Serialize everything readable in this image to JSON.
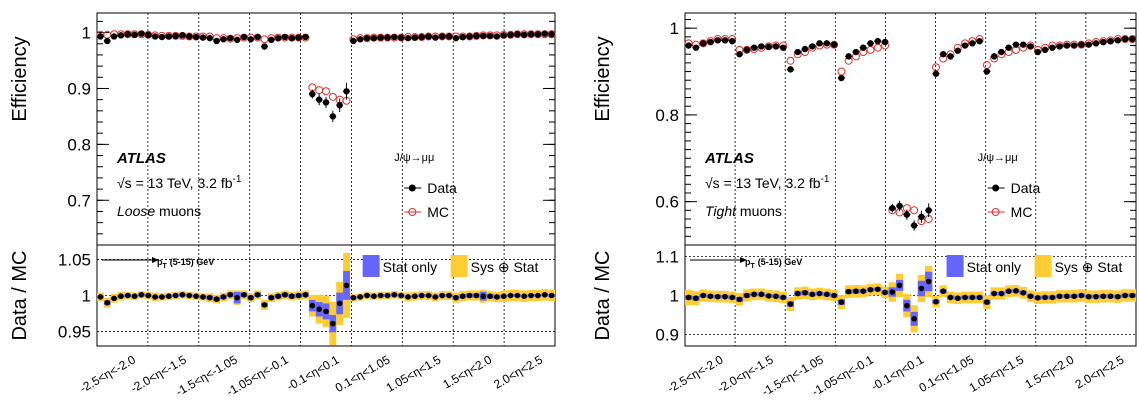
{
  "chart_data": [
    {
      "type": "scatter",
      "panel": "loose",
      "ylabel_top": "Efficiency",
      "ylabel_bottom": "Data / MC",
      "atlas_label": "ATLAS",
      "energy_label": "√s = 13 TeV, 3.2 fb",
      "energy_sup": "-1",
      "selection_label": "Loose",
      "selection_suffix": " muons",
      "process_label": "J/ψ→μμ",
      "pt_label": "p",
      "pt_sub": "T",
      "pt_range": "(5-15) GeV",
      "legend": {
        "data": "Data",
        "mc": "MC",
        "stat": "Stat only",
        "sys": "Sys ⊕ Stat"
      },
      "colors": {
        "data": "#000000",
        "mc": "#e03030",
        "stat": "#6666ff",
        "sys": "#ffcc33"
      },
      "eta_bins": [
        "-2.5<η<-2.0",
        "-2.0<η<-1.5",
        "-1.5<η<-1.05",
        "-1.05<η<-0.1",
        "-0.1<η<0.1",
        "0.1<η<1.05",
        "1.05<η<1.5",
        "1.5<η<2.0",
        "2.0<η<2.5"
      ],
      "top": {
        "ylim": [
          0.62,
          1.035
        ],
        "yticks": [
          "0.7",
          "0.8",
          "0.9",
          "1"
        ],
        "ytick_values": [
          0.7,
          0.8,
          0.9,
          1.0
        ],
        "data": [
          0.993,
          0.985,
          0.993,
          0.995,
          0.997,
          0.996,
          0.998,
          0.996,
          0.993,
          0.992,
          0.993,
          0.994,
          0.995,
          0.993,
          0.992,
          0.991,
          0.99,
          0.985,
          0.988,
          0.99,
          0.987,
          0.992,
          0.988,
          0.992,
          0.975,
          0.987,
          0.99,
          0.992,
          0.99,
          0.991,
          0.992,
          0.89,
          0.88,
          0.875,
          0.85,
          0.87,
          0.895,
          0.985,
          0.988,
          0.99,
          0.99,
          0.991,
          0.991,
          0.992,
          0.991,
          0.99,
          0.991,
          0.992,
          0.993,
          0.991,
          0.993,
          0.993,
          0.99,
          0.992,
          0.993,
          0.994,
          0.994,
          0.994,
          0.993,
          0.995,
          0.996,
          0.997,
          0.996,
          0.997,
          0.997,
          0.998,
          0.997
        ],
        "mc": [
          0.996,
          0.996,
          0.997,
          0.997,
          0.997,
          0.997,
          0.997,
          0.996,
          0.995,
          0.994,
          0.994,
          0.994,
          0.994,
          0.993,
          0.993,
          0.993,
          0.993,
          0.99,
          0.99,
          0.989,
          0.99,
          0.991,
          0.991,
          0.991,
          0.988,
          0.99,
          0.991,
          0.991,
          0.991,
          0.991,
          0.991,
          0.902,
          0.897,
          0.895,
          0.885,
          0.88,
          0.878,
          0.988,
          0.99,
          0.99,
          0.991,
          0.991,
          0.991,
          0.991,
          0.991,
          0.992,
          0.992,
          0.992,
          0.993,
          0.993,
          0.993,
          0.993,
          0.993,
          0.993,
          0.993,
          0.994,
          0.995,
          0.995,
          0.995,
          0.996,
          0.996,
          0.997,
          0.997,
          0.997,
          0.997,
          0.997,
          0.997
        ],
        "err": [
          0.004,
          0.004,
          0.003,
          0.003,
          0.003,
          0.003,
          0.003,
          0.003,
          0.004,
          0.004,
          0.004,
          0.003,
          0.003,
          0.004,
          0.004,
          0.004,
          0.005,
          0.004,
          0.004,
          0.004,
          0.005,
          0.004,
          0.004,
          0.004,
          0.005,
          0.004,
          0.004,
          0.004,
          0.004,
          0.004,
          0.004,
          0.008,
          0.01,
          0.01,
          0.01,
          0.012,
          0.015,
          0.004,
          0.003,
          0.003,
          0.003,
          0.003,
          0.003,
          0.003,
          0.003,
          0.003,
          0.003,
          0.003,
          0.003,
          0.003,
          0.003,
          0.003,
          0.003,
          0.003,
          0.003,
          0.003,
          0.003,
          0.003,
          0.003,
          0.003,
          0.003,
          0.003,
          0.003,
          0.003,
          0.003,
          0.003,
          0.003
        ]
      },
      "bottom": {
        "ylim": [
          0.93,
          1.07
        ],
        "yticks": [
          "0.95",
          "1",
          "1.05"
        ],
        "ytick_values": [
          0.95,
          1.0,
          1.05
        ],
        "ratio": [
          0.998,
          0.99,
          0.996,
          0.999,
          1.0,
          0.999,
          1.001,
          1.0,
          0.998,
          0.998,
          0.999,
          1.0,
          1.001,
          1.0,
          0.999,
          0.998,
          0.997,
          0.995,
          0.998,
          1.001,
          0.997,
          1.001,
          0.997,
          1.001,
          0.987,
          0.997,
          0.999,
          1.001,
          0.999,
          1.0,
          1.001,
          0.986,
          0.981,
          0.978,
          0.961,
          0.989,
          1.014,
          0.997,
          0.998,
          1.0,
          0.999,
          1.0,
          1.0,
          1.001,
          1.0,
          0.998,
          0.999,
          1.0,
          1.0,
          0.998,
          1.0,
          1.0,
          0.997,
          0.999,
          1.0,
          1.0,
          0.999,
          0.999,
          0.998,
          0.999,
          1.0,
          1.0,
          0.999,
          1.0,
          1.0,
          1.001,
          1.0
        ],
        "stat": [
          0.002,
          0.003,
          0.002,
          0.002,
          0.002,
          0.002,
          0.002,
          0.002,
          0.002,
          0.002,
          0.002,
          0.002,
          0.002,
          0.002,
          0.002,
          0.002,
          0.003,
          0.003,
          0.003,
          0.003,
          0.008,
          0.003,
          0.003,
          0.003,
          0.003,
          0.003,
          0.003,
          0.003,
          0.003,
          0.003,
          0.003,
          0.008,
          0.01,
          0.011,
          0.012,
          0.015,
          0.02,
          0.002,
          0.002,
          0.002,
          0.002,
          0.002,
          0.002,
          0.002,
          0.002,
          0.002,
          0.002,
          0.002,
          0.002,
          0.002,
          0.002,
          0.002,
          0.003,
          0.003,
          0.003,
          0.003,
          0.006,
          0.003,
          0.003,
          0.002,
          0.002,
          0.002,
          0.002,
          0.002,
          0.002,
          0.002,
          0.002
        ],
        "sys": [
          0.006,
          0.007,
          0.006,
          0.006,
          0.005,
          0.005,
          0.005,
          0.005,
          0.006,
          0.005,
          0.005,
          0.005,
          0.005,
          0.005,
          0.005,
          0.005,
          0.006,
          0.006,
          0.006,
          0.006,
          0.01,
          0.006,
          0.006,
          0.006,
          0.007,
          0.006,
          0.006,
          0.006,
          0.006,
          0.006,
          0.006,
          0.015,
          0.02,
          0.022,
          0.03,
          0.03,
          0.045,
          0.005,
          0.005,
          0.005,
          0.005,
          0.005,
          0.005,
          0.005,
          0.005,
          0.006,
          0.006,
          0.006,
          0.006,
          0.006,
          0.006,
          0.006,
          0.007,
          0.007,
          0.007,
          0.007,
          0.009,
          0.007,
          0.007,
          0.008,
          0.008,
          0.008,
          0.008,
          0.008,
          0.008,
          0.008,
          0.008
        ]
      }
    },
    {
      "type": "scatter",
      "panel": "tight",
      "ylabel_top": "Efficiency",
      "ylabel_bottom": "Data / MC",
      "atlas_label": "ATLAS",
      "energy_label": "√s = 13 TeV, 3.2 fb",
      "energy_sup": "-1",
      "selection_label": "Tight",
      "selection_suffix": " muons",
      "process_label": "J/ψ→μμ",
      "pt_label": "p",
      "pt_sub": "T",
      "pt_range": "(5-15) GeV",
      "legend": {
        "data": "Data",
        "mc": "MC",
        "stat": "Stat only",
        "sys": "Sys ⊕ Stat"
      },
      "colors": {
        "data": "#000000",
        "mc": "#e03030",
        "stat": "#6666ff",
        "sys": "#ffcc33"
      },
      "eta_bins": [
        "-2.5<η<-2.0",
        "-2.0<η<-1.5",
        "-1.5<η<-1.05",
        "-1.05<η<-0.1",
        "-0.1<η<0.1",
        "0.1<η<1.05",
        "1.05<η<1.5",
        "1.5<η<2.0",
        "2.0<η<2.5"
      ],
      "top": {
        "ylim": [
          0.5,
          1.035
        ],
        "yticks": [
          "0.6",
          "0.8",
          "1"
        ],
        "ytick_values": [
          0.6,
          0.8,
          1.0
        ],
        "data": [
          0.96,
          0.955,
          0.965,
          0.968,
          0.972,
          0.972,
          0.97,
          0.94,
          0.95,
          0.955,
          0.958,
          0.957,
          0.958,
          0.955,
          0.905,
          0.945,
          0.952,
          0.958,
          0.965,
          0.965,
          0.962,
          0.885,
          0.935,
          0.945,
          0.955,
          0.965,
          0.97,
          0.968,
          0.585,
          0.59,
          0.57,
          0.545,
          0.565,
          0.58,
          0.895,
          0.94,
          0.935,
          0.948,
          0.96,
          0.965,
          0.97,
          0.9,
          0.935,
          0.945,
          0.955,
          0.962,
          0.962,
          0.958,
          0.945,
          0.95,
          0.955,
          0.958,
          0.96,
          0.96,
          0.962,
          0.962,
          0.965,
          0.968,
          0.97,
          0.972,
          0.975,
          0.975
        ],
        "mc": [
          0.965,
          0.962,
          0.965,
          0.97,
          0.975,
          0.975,
          0.975,
          0.95,
          0.95,
          0.952,
          0.955,
          0.958,
          0.96,
          0.96,
          0.925,
          0.94,
          0.945,
          0.955,
          0.96,
          0.962,
          0.962,
          0.9,
          0.925,
          0.935,
          0.945,
          0.95,
          0.955,
          0.96,
          0.58,
          0.575,
          0.585,
          0.58,
          0.555,
          0.56,
          0.91,
          0.93,
          0.94,
          0.955,
          0.965,
          0.97,
          0.975,
          0.915,
          0.93,
          0.94,
          0.945,
          0.95,
          0.955,
          0.96,
          0.95,
          0.955,
          0.96,
          0.96,
          0.962,
          0.962,
          0.962,
          0.965,
          0.968,
          0.97,
          0.972,
          0.975,
          0.975,
          0.975
        ],
        "err": [
          0.006,
          0.006,
          0.005,
          0.005,
          0.005,
          0.005,
          0.005,
          0.006,
          0.006,
          0.005,
          0.005,
          0.005,
          0.005,
          0.005,
          0.007,
          0.006,
          0.006,
          0.005,
          0.005,
          0.005,
          0.005,
          0.007,
          0.006,
          0.006,
          0.005,
          0.005,
          0.005,
          0.005,
          0.01,
          0.012,
          0.012,
          0.012,
          0.014,
          0.016,
          0.006,
          0.005,
          0.005,
          0.005,
          0.005,
          0.005,
          0.005,
          0.006,
          0.005,
          0.005,
          0.005,
          0.005,
          0.005,
          0.005,
          0.005,
          0.005,
          0.005,
          0.005,
          0.005,
          0.005,
          0.005,
          0.005,
          0.005,
          0.005,
          0.005,
          0.005,
          0.005,
          0.005
        ]
      },
      "bottom": {
        "ylim": [
          0.87,
          1.13
        ],
        "yticks": [
          "0.9",
          "1",
          "1.1"
        ],
        "ytick_values": [
          0.9,
          1.0,
          1.1
        ],
        "ratio": [
          0.995,
          0.993,
          1.0,
          0.998,
          0.997,
          0.997,
          0.995,
          0.99,
          1.0,
          1.003,
          1.003,
          0.999,
          0.998,
          0.995,
          0.978,
          1.005,
          1.007,
          1.003,
          1.005,
          1.003,
          1.0,
          0.983,
          1.01,
          1.011,
          1.011,
          1.015,
          1.016,
          1.008,
          1.009,
          1.026,
          0.974,
          0.94,
          1.018,
          1.036,
          0.984,
          1.011,
          0.995,
          0.993,
          0.995,
          0.995,
          0.995,
          0.983,
          1.005,
          1.005,
          1.011,
          1.012,
          1.007,
          0.998,
          0.994,
          0.995,
          0.995,
          0.998,
          0.998,
          0.998,
          1.0,
          0.997,
          0.997,
          0.998,
          0.998,
          0.997,
          1.0,
          1.0
        ],
        "stat": [
          0.006,
          0.006,
          0.005,
          0.005,
          0.005,
          0.005,
          0.005,
          0.006,
          0.006,
          0.005,
          0.005,
          0.005,
          0.005,
          0.005,
          0.007,
          0.006,
          0.006,
          0.005,
          0.005,
          0.005,
          0.005,
          0.007,
          0.006,
          0.006,
          0.005,
          0.005,
          0.005,
          0.005,
          0.012,
          0.014,
          0.015,
          0.018,
          0.02,
          0.025,
          0.005,
          0.005,
          0.005,
          0.005,
          0.005,
          0.005,
          0.005,
          0.006,
          0.005,
          0.005,
          0.005,
          0.005,
          0.005,
          0.005,
          0.005,
          0.005,
          0.005,
          0.005,
          0.005,
          0.005,
          0.005,
          0.005,
          0.005,
          0.005,
          0.005,
          0.005,
          0.005,
          0.005
        ],
        "sys": [
          0.02,
          0.018,
          0.016,
          0.015,
          0.015,
          0.015,
          0.015,
          0.016,
          0.016,
          0.015,
          0.015,
          0.015,
          0.015,
          0.015,
          0.018,
          0.016,
          0.016,
          0.015,
          0.015,
          0.015,
          0.015,
          0.018,
          0.016,
          0.016,
          0.015,
          0.015,
          0.015,
          0.015,
          0.025,
          0.03,
          0.03,
          0.035,
          0.035,
          0.04,
          0.015,
          0.015,
          0.015,
          0.015,
          0.015,
          0.015,
          0.015,
          0.018,
          0.016,
          0.016,
          0.015,
          0.015,
          0.015,
          0.015,
          0.016,
          0.016,
          0.016,
          0.016,
          0.016,
          0.016,
          0.016,
          0.016,
          0.016,
          0.016,
          0.016,
          0.016,
          0.016,
          0.016
        ]
      }
    }
  ]
}
